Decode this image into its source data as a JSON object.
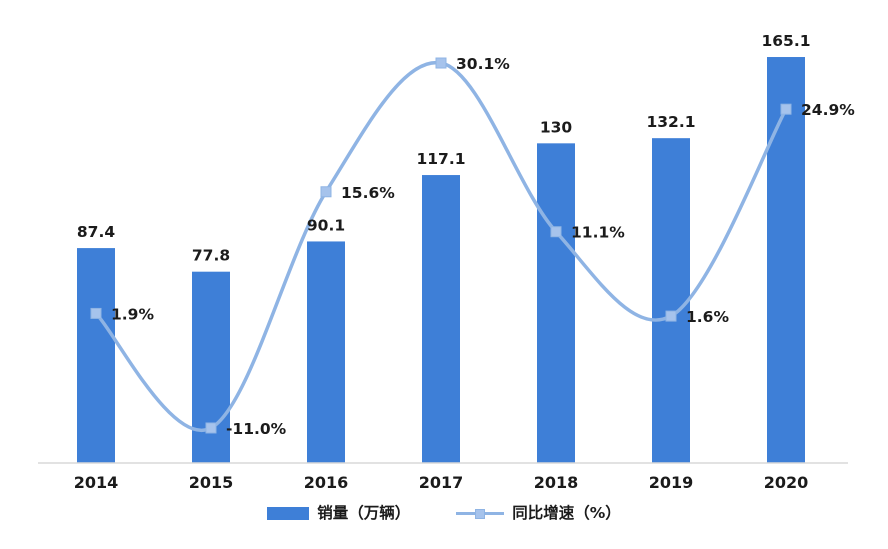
{
  "chart_data": {
    "type": "bar+line",
    "title": "",
    "categories": [
      "2014",
      "2015",
      "2016",
      "2017",
      "2018",
      "2019",
      "2020"
    ],
    "series": [
      {
        "name": "销量（万辆）",
        "type": "bar",
        "values": [
          87.4,
          77.8,
          90.1,
          117.1,
          130,
          132.1,
          165.1
        ],
        "labels": [
          "87.4",
          "77.8",
          "90.1",
          "117.1",
          "130",
          "132.1",
          "165.1"
        ],
        "color": "#3E7FD7"
      },
      {
        "name": "同比增速（%）",
        "type": "line",
        "values": [
          1.9,
          -11.0,
          15.6,
          30.1,
          11.1,
          1.6,
          24.9
        ],
        "labels": [
          "1.9%",
          "-11.0%",
          "15.6%",
          "30.1%",
          "11.1%",
          "1.6%",
          "24.9%"
        ],
        "color": "#8FB4E4",
        "marker_fill": "#A6C3EC",
        "smooth": true
      }
    ],
    "legend": [
      "销量（万辆）",
      "同比增速（%）"
    ],
    "legend_position": "bottom",
    "grid": false,
    "axes": {
      "x_visible": true,
      "y_visible": false
    },
    "text_color": "#1b1b1b",
    "axis_color": "#d9d9d9",
    "background": "#ffffff"
  }
}
